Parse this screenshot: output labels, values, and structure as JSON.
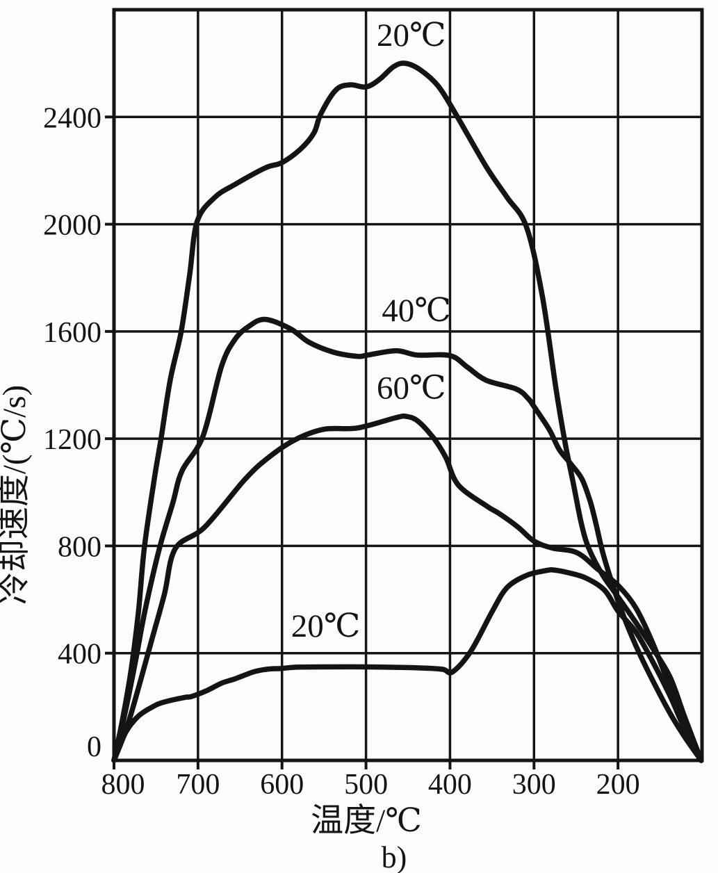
{
  "figure": {
    "caption": "b)",
    "ink": "#141414",
    "background": "#fdfdfb"
  },
  "chart_data": {
    "type": "line",
    "title": "",
    "xlabel": "温度/℃",
    "ylabel": "冷却速度/(℃/s)",
    "xlim": [
      800,
      100
    ],
    "ylim": [
      0,
      2800
    ],
    "x_axis_reversed": true,
    "x_ticks": [
      800,
      700,
      600,
      500,
      400,
      300,
      200
    ],
    "y_ticks": [
      0,
      400,
      800,
      1200,
      1600,
      2000,
      2400
    ],
    "grid": true,
    "legend_position": "inline-annotations",
    "series": [
      {
        "name": "20C-upper",
        "label": "20℃",
        "points": [
          [
            800,
            0
          ],
          [
            790,
            150
          ],
          [
            780,
            330
          ],
          [
            771,
            550
          ],
          [
            764,
            790
          ],
          [
            752,
            1050
          ],
          [
            744,
            1200
          ],
          [
            733,
            1420
          ],
          [
            720,
            1600
          ],
          [
            710,
            1810
          ],
          [
            701,
            2010
          ],
          [
            680,
            2100
          ],
          [
            655,
            2150
          ],
          [
            620,
            2210
          ],
          [
            600,
            2230
          ],
          [
            578,
            2280
          ],
          [
            562,
            2340
          ],
          [
            554,
            2410
          ],
          [
            536,
            2500
          ],
          [
            519,
            2520
          ],
          [
            500,
            2512
          ],
          [
            484,
            2540
          ],
          [
            467,
            2588
          ],
          [
            453,
            2600
          ],
          [
            435,
            2575
          ],
          [
            414,
            2515
          ],
          [
            393,
            2410
          ],
          [
            357,
            2215
          ],
          [
            332,
            2100
          ],
          [
            309,
            1990
          ],
          [
            290,
            1730
          ],
          [
            274,
            1390
          ],
          [
            263,
            1185
          ],
          [
            253,
            1030
          ],
          [
            243,
            875
          ],
          [
            234,
            785
          ],
          [
            218,
            690
          ],
          [
            200,
            610
          ],
          [
            180,
            520
          ],
          [
            160,
            425
          ],
          [
            138,
            310
          ],
          [
            121,
            165
          ],
          [
            101,
            0
          ]
        ]
      },
      {
        "name": "40C",
        "label": "40℃",
        "points": [
          [
            800,
            0
          ],
          [
            788,
            160
          ],
          [
            775,
            360
          ],
          [
            763,
            560
          ],
          [
            746,
            790
          ],
          [
            730,
            960
          ],
          [
            719,
            1080
          ],
          [
            694,
            1210
          ],
          [
            672,
            1470
          ],
          [
            656,
            1570
          ],
          [
            639,
            1620
          ],
          [
            620,
            1645
          ],
          [
            590,
            1610
          ],
          [
            568,
            1560
          ],
          [
            539,
            1523
          ],
          [
            510,
            1507
          ],
          [
            498,
            1512
          ],
          [
            464,
            1528
          ],
          [
            439,
            1512
          ],
          [
            400,
            1510
          ],
          [
            379,
            1466
          ],
          [
            357,
            1418
          ],
          [
            321,
            1385
          ],
          [
            307,
            1350
          ],
          [
            300,
            1320
          ],
          [
            282,
            1235
          ],
          [
            270,
            1160
          ],
          [
            256,
            1105
          ],
          [
            243,
            1050
          ],
          [
            233,
            965
          ],
          [
            226,
            880
          ],
          [
            219,
            785
          ],
          [
            209,
            680
          ],
          [
            196,
            560
          ],
          [
            179,
            430
          ],
          [
            159,
            300
          ],
          [
            137,
            170
          ],
          [
            119,
            80
          ],
          [
            101,
            0
          ]
        ]
      },
      {
        "name": "60C",
        "label": "60℃",
        "points": [
          [
            800,
            0
          ],
          [
            785,
            120
          ],
          [
            770,
            280
          ],
          [
            755,
            450
          ],
          [
            740,
            620
          ],
          [
            727,
            790
          ],
          [
            692,
            870
          ],
          [
            645,
            1045
          ],
          [
            618,
            1125
          ],
          [
            585,
            1195
          ],
          [
            550,
            1235
          ],
          [
            510,
            1240
          ],
          [
            465,
            1278
          ],
          [
            452,
            1283
          ],
          [
            438,
            1265
          ],
          [
            419,
            1200
          ],
          [
            405,
            1130
          ],
          [
            390,
            1027
          ],
          [
            356,
            948
          ],
          [
            342,
            922
          ],
          [
            319,
            870
          ],
          [
            300,
            818
          ],
          [
            278,
            792
          ],
          [
            249,
            775
          ],
          [
            224,
            713
          ],
          [
            200,
            653
          ],
          [
            179,
            570
          ],
          [
            159,
            440
          ],
          [
            138,
            270
          ],
          [
            121,
            125
          ],
          [
            101,
            0
          ]
        ]
      },
      {
        "name": "20C-lower",
        "label": "20℃",
        "points": [
          [
            800,
            0
          ],
          [
            786,
            105
          ],
          [
            771,
            165
          ],
          [
            754,
            200
          ],
          [
            741,
            217
          ],
          [
            716,
            235
          ],
          [
            708,
            238
          ],
          [
            689,
            261
          ],
          [
            672,
            288
          ],
          [
            656,
            304
          ],
          [
            634,
            330
          ],
          [
            618,
            340
          ],
          [
            601,
            343
          ],
          [
            579,
            348
          ],
          [
            520,
            349
          ],
          [
            482,
            348
          ],
          [
            438,
            345
          ],
          [
            409,
            340
          ],
          [
            397,
            330
          ],
          [
            375,
            408
          ],
          [
            349,
            560
          ],
          [
            332,
            645
          ],
          [
            309,
            690
          ],
          [
            286,
            708
          ],
          [
            276,
            710
          ],
          [
            259,
            700
          ],
          [
            238,
            680
          ],
          [
            216,
            635
          ],
          [
            200,
            557
          ],
          [
            179,
            480
          ],
          [
            159,
            370
          ],
          [
            138,
            240
          ],
          [
            121,
            120
          ],
          [
            101,
            0
          ]
        ]
      }
    ],
    "annotations": [
      {
        "series": "20C-upper",
        "text": "20℃",
        "x": 446,
        "y": 2707
      },
      {
        "series": "40C",
        "text": "40℃",
        "x": 440,
        "y": 1680
      },
      {
        "series": "60C",
        "text": "60℃",
        "x": 446,
        "y": 1391
      },
      {
        "series": "20C-lower",
        "text": "20℃",
        "x": 548,
        "y": 503
      }
    ]
  }
}
